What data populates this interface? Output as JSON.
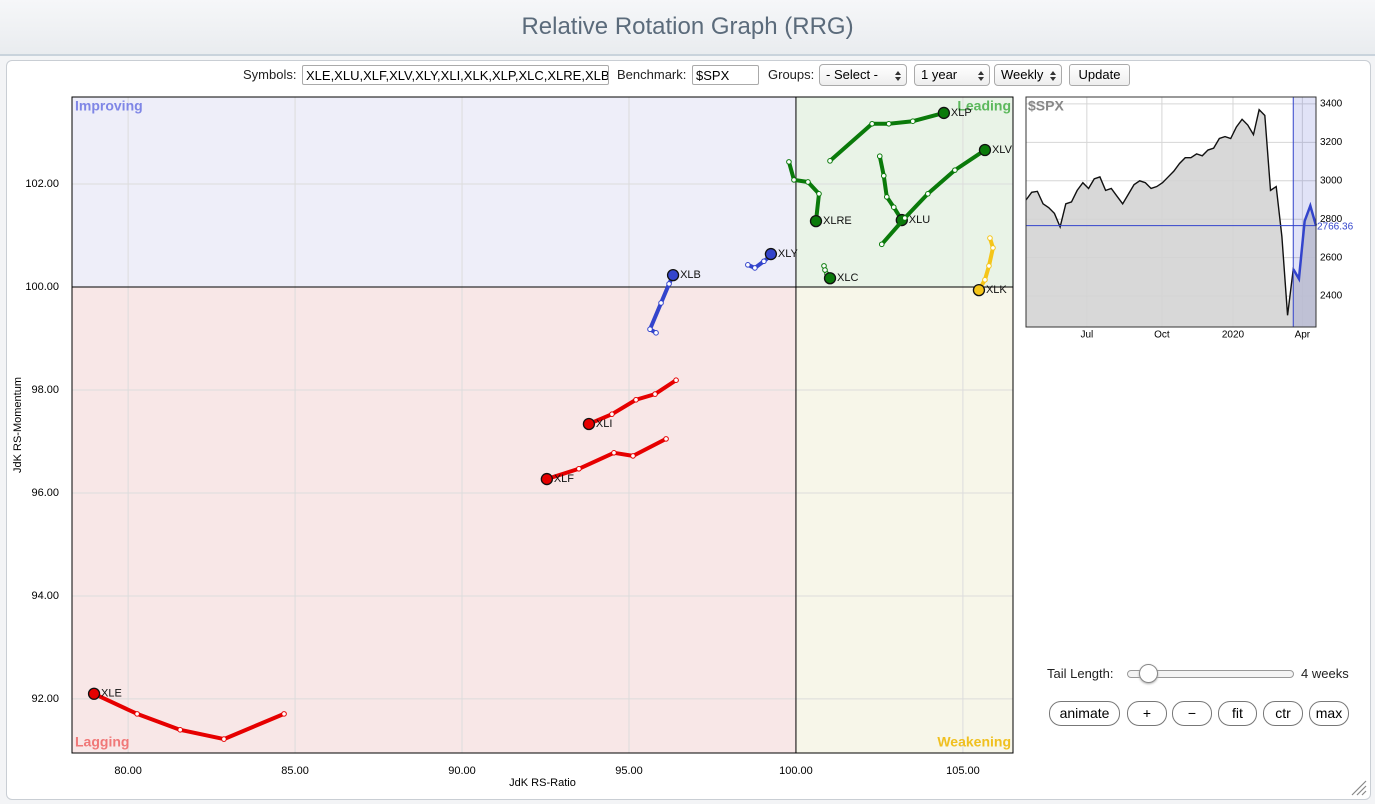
{
  "header": {
    "title": "Relative Rotation Graph (RRG)"
  },
  "controls": {
    "symbols_label": "Symbols:",
    "symbols": "XLE,XLU,XLF,XLV,XLY,XLI,XLK,XLP,XLC,XLRE,XLB",
    "benchmark_label": "Benchmark:",
    "benchmark": "$SPX",
    "groups_label": "Groups:",
    "groups": "- Select -",
    "period": "1 year",
    "interval": "Weekly",
    "update": "Update",
    "tail_length_label": "Tail Length:",
    "tail_length": "4 weeks",
    "buttons": [
      "animate",
      "+",
      "−",
      "fit",
      "ctr",
      "max"
    ]
  },
  "chart_data": [
    {
      "type": "rrg",
      "x_label": "JdK RS-Ratio",
      "y_label": "JdK RS-Momentum",
      "xlim": [
        78.32,
        106.5
      ],
      "ylim": [
        90.95,
        103.69
      ],
      "xticks": [
        {
          "value": 80,
          "label": "80.00"
        },
        {
          "value": 85,
          "label": "85.00"
        },
        {
          "value": 90,
          "label": "90.00"
        },
        {
          "value": 95,
          "label": "95.00"
        },
        {
          "value": 100,
          "label": "100.00"
        },
        {
          "value": 105,
          "label": "105.00"
        }
      ],
      "yticks": [
        {
          "value": 92,
          "label": "92.00"
        },
        {
          "value": 94,
          "label": "94.00"
        },
        {
          "value": 96,
          "label": "96.00"
        },
        {
          "value": 98,
          "label": "98.00"
        },
        {
          "value": 100,
          "label": "100.00"
        },
        {
          "value": 102,
          "label": "102.00"
        }
      ],
      "grid": true,
      "quadrant_center": [
        100,
        100
      ],
      "quadrants": [
        {
          "name": "Improving",
          "color": "#7f86e6",
          "background": "#eeeef9"
        },
        {
          "name": "Leading",
          "color": "#5cb85c",
          "background": "#e9f3e7"
        },
        {
          "name": "Lagging",
          "color": "#f07878",
          "background": "#f8e7e7"
        },
        {
          "name": "Weakening",
          "color": "#f0c020",
          "background": "#f7f6e9"
        }
      ],
      "series": [
        {
          "name": "XLE",
          "color": "#e60000",
          "x": [
            84.67,
            82.87,
            81.56,
            80.27,
            78.98
          ],
          "values": [
            91.71,
            91.22,
            91.4,
            91.71,
            92.1
          ]
        },
        {
          "name": "XLF",
          "color": "#e60000",
          "x": [
            96.11,
            95.12,
            94.55,
            93.5,
            92.54
          ],
          "values": [
            97.05,
            96.72,
            96.78,
            96.47,
            96.27
          ]
        },
        {
          "name": "XLI",
          "color": "#e60000",
          "x": [
            96.41,
            95.78,
            95.21,
            94.49,
            93.8
          ],
          "values": [
            98.19,
            97.92,
            97.81,
            97.53,
            97.34
          ]
        },
        {
          "name": "XLB",
          "color": "#3344cc",
          "x": [
            95.81,
            95.63,
            95.96,
            96.2,
            96.32
          ],
          "values": [
            99.11,
            99.18,
            99.69,
            100.06,
            100.23
          ]
        },
        {
          "name": "XLY",
          "color": "#3344cc",
          "x": [
            98.56,
            98.77,
            99.04,
            99.19,
            99.25
          ],
          "values": [
            100.43,
            100.37,
            100.5,
            100.58,
            100.64
          ]
        },
        {
          "name": "XLRE",
          "color": "#0a7a0a",
          "x": [
            99.79,
            99.94,
            100.36,
            100.69,
            100.6
          ],
          "values": [
            102.43,
            102.08,
            102.04,
            101.81,
            101.28
          ]
        },
        {
          "name": "XLU",
          "color": "#0a7a0a",
          "x": [
            102.51,
            102.63,
            102.72,
            102.93,
            103.17
          ],
          "values": [
            102.54,
            102.16,
            101.75,
            101.55,
            101.3
          ]
        },
        {
          "name": "XLV",
          "color": "#0a7a0a",
          "x": [
            102.57,
            103.26,
            103.95,
            104.76,
            105.66
          ],
          "values": [
            100.83,
            101.34,
            101.81,
            102.27,
            102.66
          ]
        },
        {
          "name": "XLP",
          "color": "#0a7a0a",
          "x": [
            101.02,
            102.28,
            102.78,
            103.5,
            104.43
          ],
          "values": [
            102.45,
            103.17,
            103.17,
            103.22,
            103.38
          ]
        },
        {
          "name": "XLC",
          "color": "#0a7a0a",
          "x": [
            100.84,
            100.87,
            100.93,
            100.98,
            101.02
          ],
          "values": [
            100.41,
            100.33,
            100.25,
            100.2,
            100.17
          ]
        },
        {
          "name": "XLK",
          "color": "#f5c518",
          "x": [
            105.81,
            105.9,
            105.78,
            105.66,
            105.48
          ],
          "values": [
            100.95,
            100.76,
            100.41,
            100.14,
            99.94
          ]
        }
      ]
    },
    {
      "type": "line",
      "title": "$SPX",
      "color": "#111111",
      "highlight_color": "#3344cc",
      "fill": "#d4d4d4",
      "xlim": [
        0,
        51
      ],
      "ylim": [
        2239,
        3436
      ],
      "xticks": [
        {
          "value": 10.7,
          "label": "Jul"
        },
        {
          "value": 23.9,
          "label": "Oct"
        },
        {
          "value": 36.4,
          "label": "2020"
        },
        {
          "value": 48.6,
          "label": "Apr"
        }
      ],
      "yticks": [
        2400,
        2600,
        2800,
        3000,
        3200,
        3400
      ],
      "grid": true,
      "values": [
        2900,
        2940,
        2945,
        2880,
        2860,
        2830,
        2760,
        2880,
        2890,
        2950,
        2990,
        2960,
        3010,
        3020,
        2950,
        2960,
        2920,
        2880,
        2930,
        2980,
        3000,
        2990,
        2960,
        2970,
        2990,
        3020,
        3050,
        3090,
        3120,
        3120,
        3140,
        3130,
        3160,
        3170,
        3220,
        3230,
        3220,
        3280,
        3320,
        3290,
        3240,
        3370,
        3340,
        2950,
        2970,
        2710,
        2300,
        2540,
        2490,
        2790,
        2870,
        2766.36
      ]
    }
  ]
}
